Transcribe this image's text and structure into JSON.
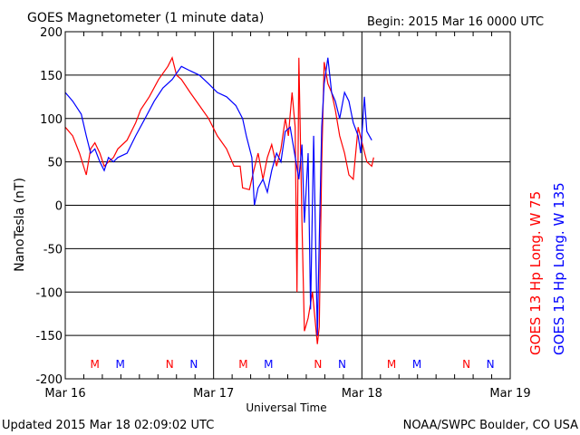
{
  "chart_data": {
    "type": "line",
    "title": "GOES Magnetometer (1 minute data)",
    "begin_label": "Begin:  2015 Mar 16 0000 UTC",
    "xlabel": "Universal Time",
    "ylabel": "NanoTesla (nT)",
    "x_unit": "hours since 2015 Mar 16 0000 UTC",
    "xlim": [
      0,
      72
    ],
    "ylim": [
      -200,
      200
    ],
    "yticks": [
      200,
      150,
      100,
      50,
      0,
      -50,
      -100,
      -150,
      -200
    ],
    "xticks": [
      {
        "h": 0,
        "label": "Mar 16"
      },
      {
        "h": 24,
        "label": "Mar 17"
      },
      {
        "h": 48,
        "label": "Mar 18"
      },
      {
        "h": 72,
        "label": "Mar 19"
      }
    ],
    "grid": true,
    "series": [
      {
        "name": "GOES 13 Hp",
        "longitude": "Long. W 75",
        "color": "#ff0000",
        "x": [
          0,
          1.2,
          2.3,
          3.4,
          4.1,
          4.8,
          5.6,
          6.3,
          7.0,
          7.8,
          8.5,
          10.0,
          11.4,
          12.2,
          13.6,
          15.1,
          16.6,
          17.3,
          18.0,
          18.8,
          20.2,
          21.7,
          23.2,
          24.6,
          26.1,
          27.3,
          28.3,
          28.7,
          29.8,
          30.5,
          31.2,
          32.0,
          32.7,
          33.4,
          34.2,
          34.9,
          35.6,
          36.1,
          36.7,
          37.2,
          37.5,
          37.8,
          38.3,
          38.7,
          39.3,
          40.0,
          40.8,
          41.1,
          41.5,
          41.9,
          42.5,
          43.1,
          43.7,
          44.4,
          45.2,
          45.9,
          46.6,
          47.4,
          48.1,
          48.8,
          49.6,
          49.9
        ],
        "y": [
          90,
          80,
          60,
          35,
          65,
          72,
          60,
          45,
          50,
          55,
          65,
          75,
          95,
          110,
          125,
          145,
          160,
          170,
          150,
          145,
          130,
          115,
          100,
          80,
          65,
          45,
          45,
          20,
          18,
          40,
          60,
          30,
          55,
          70,
          45,
          65,
          100,
          80,
          130,
          90,
          -100,
          170,
          -20,
          -145,
          -130,
          -100,
          -160,
          -140,
          50,
          165,
          140,
          130,
          110,
          80,
          60,
          35,
          30,
          90,
          70,
          50,
          45,
          55
        ]
      },
      {
        "name": "GOES 15 Hp",
        "longitude": "Long. W 135",
        "color": "#0000ff",
        "x": [
          0,
          1.2,
          2.6,
          3.4,
          4.1,
          4.8,
          5.6,
          6.3,
          7.0,
          7.8,
          8.5,
          10.0,
          11.4,
          12.9,
          14.4,
          15.8,
          17.3,
          18.8,
          20.2,
          21.7,
          23.2,
          24.6,
          26.1,
          27.6,
          28.7,
          29.3,
          30.2,
          30.6,
          31.2,
          32.0,
          32.7,
          33.4,
          34.2,
          34.9,
          35.6,
          36.4,
          37.1,
          37.8,
          38.3,
          38.7,
          39.3,
          39.7,
          40.2,
          40.8,
          41.1,
          41.5,
          41.9,
          42.5,
          43.1,
          43.7,
          44.4,
          45.2,
          45.9,
          46.6,
          47.4,
          47.8,
          48.4,
          48.8,
          49.6
        ],
        "y": [
          130,
          120,
          105,
          80,
          60,
          65,
          50,
          40,
          55,
          50,
          55,
          60,
          80,
          100,
          120,
          135,
          145,
          160,
          155,
          150,
          140,
          130,
          125,
          115,
          100,
          80,
          55,
          0,
          20,
          30,
          15,
          40,
          60,
          50,
          85,
          90,
          60,
          30,
          70,
          -20,
          60,
          -120,
          80,
          -150,
          -40,
          90,
          140,
          170,
          130,
          120,
          100,
          130,
          120,
          95,
          80,
          60,
          125,
          85,
          75
        ]
      }
    ],
    "markers": [
      {
        "label": "M",
        "h": 4.8,
        "series": 0
      },
      {
        "label": "M",
        "h": 8.9,
        "series": 1
      },
      {
        "label": "N",
        "h": 16.9,
        "series": 0
      },
      {
        "label": "N",
        "h": 20.8,
        "series": 1
      },
      {
        "label": "M",
        "h": 28.8,
        "series": 0
      },
      {
        "label": "M",
        "h": 32.9,
        "series": 1
      },
      {
        "label": "N",
        "h": 40.9,
        "series": 0
      },
      {
        "label": "N",
        "h": 44.8,
        "series": 1
      },
      {
        "label": "M",
        "h": 52.8,
        "series": 0
      },
      {
        "label": "M",
        "h": 56.9,
        "series": 1
      },
      {
        "label": "N",
        "h": 64.9,
        "series": 0
      },
      {
        "label": "N",
        "h": 68.8,
        "series": 1
      }
    ]
  },
  "footer": {
    "updated": "Updated 2015 Mar 18 02:09:02 UTC",
    "source": "NOAA/SWPC Boulder, CO USA"
  }
}
